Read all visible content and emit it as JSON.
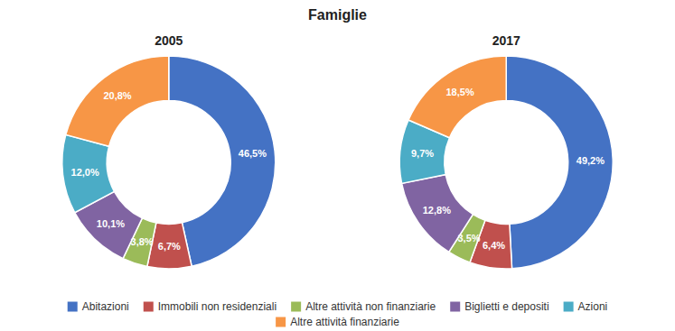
{
  "chart_data": {
    "type": "donut",
    "title": "Famiglie",
    "categories": [
      "Abitazioni",
      "Immobili non residenziali",
      "Altre attività non finanziarie",
      "Biglietti e depositi",
      "Azioni",
      "Altre attività finanziarie"
    ],
    "series": [
      {
        "name": "2005",
        "values": [
          46.5,
          6.7,
          3.8,
          10.1,
          12.0,
          20.8
        ],
        "value_labels": [
          "46,5%",
          "6,7%",
          "3,8%",
          "10,1%",
          "12,0%",
          "20,8%"
        ]
      },
      {
        "name": "2017",
        "values": [
          49.2,
          6.4,
          3.5,
          12.8,
          9.7,
          18.5
        ],
        "value_labels": [
          "49,2%",
          "6,4%",
          "3,5%",
          "12,8%",
          "9,7%",
          "18,5%"
        ]
      }
    ],
    "colors": [
      "#4472C4",
      "#C0504D",
      "#9BBB59",
      "#8064A2",
      "#4BACC6",
      "#F79646"
    ],
    "data_labels": true,
    "legend": "bottom"
  }
}
